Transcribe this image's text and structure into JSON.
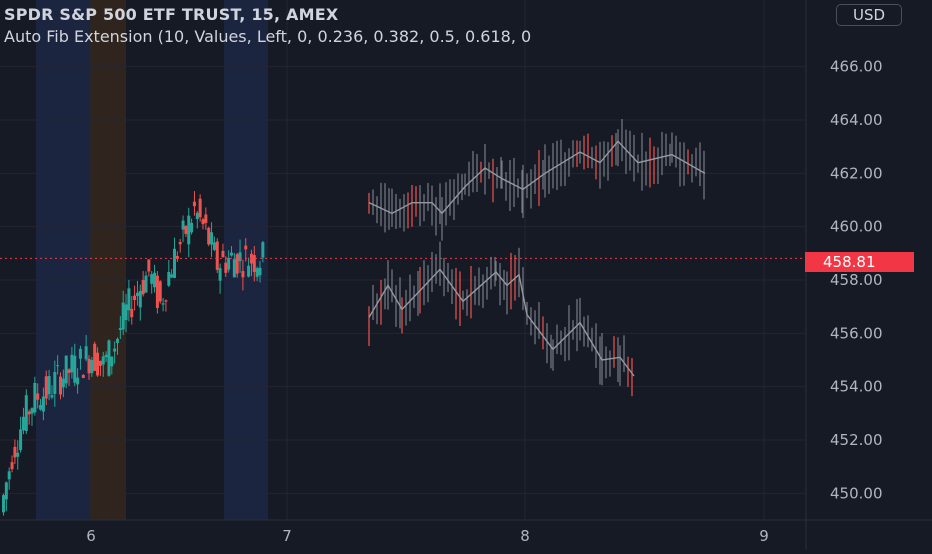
{
  "symbol_title": "SPDR S&P 500 ETF TRUST, 15, AMEX",
  "indicator_label": "Auto Fib Extension (10, Values, Left, 0, 0.236, 0.382, 0.5, 0.618, 0",
  "currency_button": "USD",
  "last_price": "458.81",
  "colors": {
    "background": "#161a25",
    "grid": "#232632",
    "up": "#26a69a",
    "down": "#ef5350",
    "session_blue": "#1d2a4a",
    "session_orange": "#3a2a1c",
    "last_price": "#f23645",
    "axis_text": "#b2b5be",
    "zigzag": "#9598a1",
    "projection_bar": "#787b86"
  },
  "chart_data": {
    "type": "candlestick",
    "title": "SPDR S&P 500 ETF TRUST, 15, AMEX",
    "ylim": [
      449,
      468.5
    ],
    "y_ticks": [
      "450.00",
      "452.00",
      "454.00",
      "456.00",
      "458.00",
      "460.00",
      "462.00",
      "464.00",
      "466.00"
    ],
    "x_ticks": [
      "6",
      "7",
      "8",
      "9"
    ],
    "grid": true,
    "axis_position": "right",
    "last_price": 458.81,
    "price_segments": [
      [
        [
          "6",
          449.3
        ],
        [
          "6",
          451.5
        ],
        [
          "6",
          453.0
        ],
        [
          "6",
          453.5
        ],
        [
          "6",
          454.0
        ],
        [
          "6",
          454.5
        ],
        [
          "6",
          455.0
        ],
        [
          "6",
          454.5
        ],
        [
          "6",
          456.0
        ],
        [
          "6",
          457.0
        ],
        [
          "6",
          458.0
        ],
        [
          "6",
          457.0
        ],
        [
          "6",
          458.5
        ],
        [
          "6",
          459.5
        ],
        [
          "6",
          460.5
        ],
        [
          "6",
          459.5
        ],
        [
          "6",
          458.5
        ],
        [
          "6",
          458.8
        ],
        [
          "6",
          458.8
        ],
        [
          "6",
          458.8
        ]
      ]
    ]
  }
}
